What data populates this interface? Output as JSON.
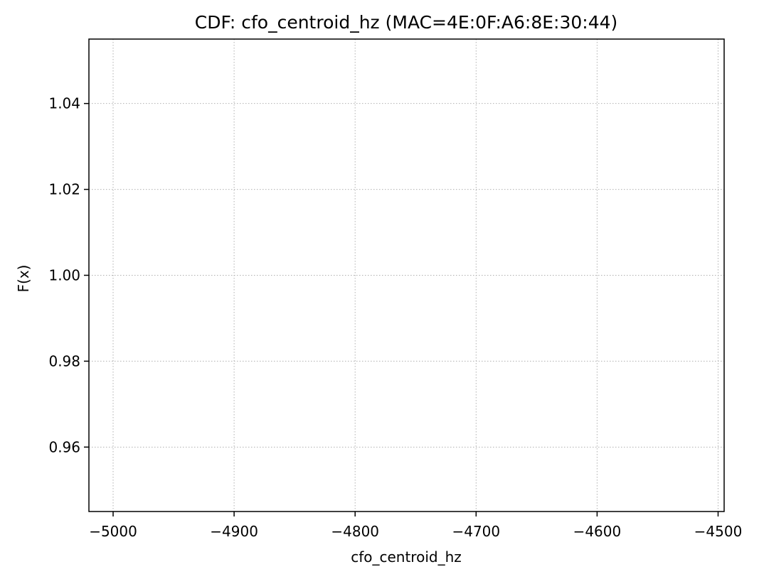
{
  "chart_data": {
    "type": "line",
    "title": "CDF: cfo_centroid_hz (MAC=4E:0F:A6:8E:30:44)",
    "xlabel": "cfo_centroid_hz",
    "ylabel": "F(x)",
    "xlim": [
      -5020,
      -4495
    ],
    "ylim": [
      0.945,
      1.055
    ],
    "xticks": [
      -5000,
      -4900,
      -4800,
      -4700,
      -4600,
      -4500
    ],
    "xtick_labels": [
      "−5000",
      "−4900",
      "−4800",
      "−4700",
      "−4600",
      "−4500"
    ],
    "yticks": [
      0.96,
      0.98,
      1.0,
      1.02,
      1.04
    ],
    "ytick_labels": [
      "0.96",
      "0.98",
      "1.00",
      "1.02",
      "1.04"
    ],
    "grid": true,
    "series": []
  }
}
